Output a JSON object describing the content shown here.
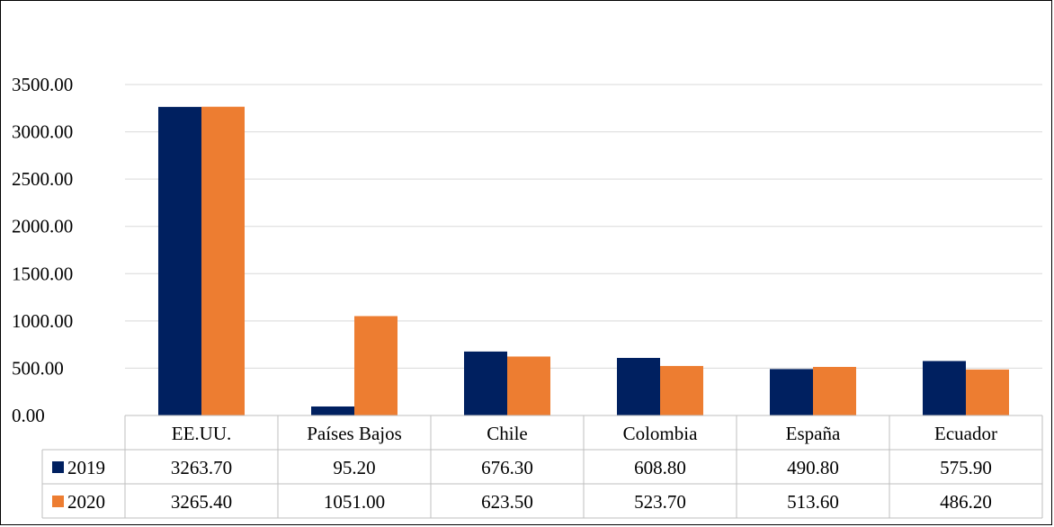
{
  "chart_data": {
    "type": "bar",
    "categories": [
      "EE.UU.",
      "Países Bajos",
      "Chile",
      "Colombia",
      "España",
      "Ecuador"
    ],
    "series": [
      {
        "name": "2019",
        "values": [
          3263.7,
          95.2,
          676.3,
          608.8,
          490.8,
          575.9
        ],
        "labels": [
          "3263.70",
          "95.20",
          "676.30",
          "608.80",
          "490.80",
          "575.90"
        ],
        "color": "#002060"
      },
      {
        "name": "2020",
        "values": [
          3265.4,
          1051.0,
          623.5,
          523.7,
          513.6,
          486.2
        ],
        "labels": [
          "3265.40",
          "1051.00",
          "623.50",
          "523.70",
          "513.60",
          "486.20"
        ],
        "color": "#ED7D31"
      }
    ],
    "yticks": [
      "0.00",
      "500.00",
      "1000.00",
      "1500.00",
      "2000.00",
      "2500.00",
      "3000.00",
      "3500.00"
    ],
    "ylim": [
      0,
      3500
    ],
    "grid": true,
    "legend": "data-table",
    "title": "",
    "xlabel": "",
    "ylabel": ""
  },
  "colors": {
    "gridline": "#d9d9d9",
    "table_border": "#bfbfbf"
  }
}
